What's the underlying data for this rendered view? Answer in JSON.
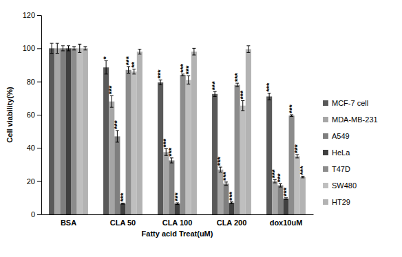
{
  "chart_data": {
    "type": "bar",
    "x_label": "Fatty acid Treat(uM)",
    "y_label": "Cell viability(%)",
    "categories": [
      "BSA",
      "CLA 50",
      "CLA 100",
      "CLA 200",
      "dox10uM"
    ],
    "ylim": [
      0,
      120
    ],
    "yticks": [
      0,
      20,
      40,
      60,
      80,
      100,
      120
    ],
    "grid": false,
    "legend": "right",
    "series": [
      {
        "name": "MCF-7 cell",
        "color": "#595959",
        "values": [
          100,
          88.5,
          79.5,
          72.5,
          71
        ],
        "errors": [
          3,
          4,
          1.5,
          1.5,
          2
        ],
        "significance": [
          null,
          "*",
          "***",
          "***",
          "***"
        ]
      },
      {
        "name": "MDA-MB-231",
        "color": "#a6a6a6",
        "values": [
          100,
          68,
          37.5,
          27,
          20
        ],
        "errors": [
          3,
          3.5,
          2,
          1.5,
          1
        ],
        "significance": [
          null,
          "***",
          "***",
          "***",
          "***"
        ]
      },
      {
        "name": "A549",
        "color": "#7f7f7f",
        "values": [
          100,
          47,
          32.5,
          18.5,
          17.5
        ],
        "errors": [
          1.5,
          3.5,
          1.5,
          1,
          1
        ],
        "significance": [
          null,
          "***",
          "***",
          "***",
          "***"
        ]
      },
      {
        "name": "HeLa",
        "color": "#404040",
        "values": [
          100,
          6.5,
          6.5,
          7,
          9.5
        ],
        "errors": [
          1.5,
          0.3,
          0.5,
          0.5,
          0.5
        ],
        "significance": [
          null,
          "***",
          "***",
          "***",
          "***"
        ]
      },
      {
        "name": "T47D",
        "color": "#8c8c8c",
        "values": [
          100,
          87,
          84,
          78,
          59.5
        ],
        "errors": [
          1,
          2,
          0.5,
          1,
          0.5
        ],
        "significance": [
          null,
          "***",
          "***",
          "***",
          "***"
        ]
      },
      {
        "name": "SW480",
        "color": "#bfbfbf",
        "values": [
          100,
          86,
          81,
          65.5,
          35
        ],
        "errors": [
          2.5,
          1.5,
          2.5,
          3,
          1
        ],
        "significance": [
          null,
          "**",
          "***",
          "***",
          "***"
        ]
      },
      {
        "name": "HT29",
        "color": "#b3b3b3",
        "values": [
          100,
          98,
          98,
          99.5,
          22.5
        ],
        "errors": [
          1,
          1.5,
          2,
          2,
          0.5
        ],
        "significance": [
          null,
          null,
          null,
          null,
          "***"
        ]
      }
    ]
  }
}
